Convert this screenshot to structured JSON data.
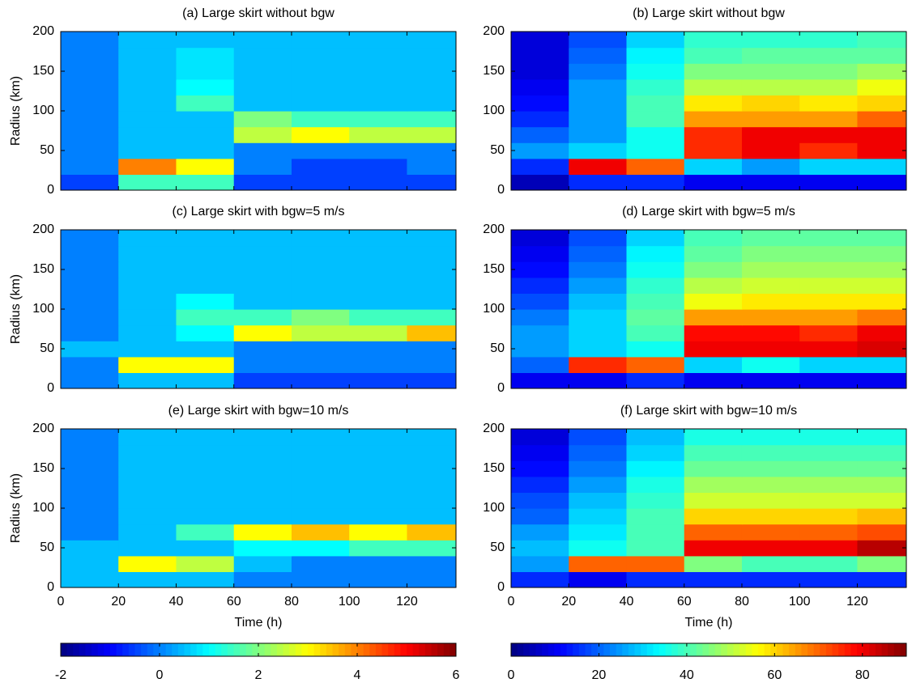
{
  "chart_data": [
    {
      "type": "heatmap",
      "title": "(a) Large skirt without bgw",
      "ylabel": "Radius (km)",
      "colormap": "jet",
      "clim": [
        -2,
        6
      ],
      "xlim": [
        0,
        137
      ],
      "ylim": [
        0,
        200
      ],
      "xticks": [
        0,
        20,
        40,
        60,
        80,
        100,
        120
      ],
      "yticks": [
        0,
        50,
        100,
        150,
        200
      ],
      "x": [
        10,
        30,
        50,
        70,
        90,
        110,
        130
      ],
      "y": [
        10,
        30,
        50,
        70,
        90,
        110,
        130,
        150,
        170,
        190
      ],
      "z": [
        [
          -0.5,
          1.5,
          1.5,
          -0.5,
          -0.5,
          -0.5,
          -0.5
        ],
        [
          0,
          4,
          3,
          0,
          -0.5,
          -0.5,
          0
        ],
        [
          0,
          0.5,
          0.5,
          0,
          0,
          0,
          0
        ],
        [
          0,
          0.5,
          0.5,
          2.5,
          3,
          2.5,
          2.5
        ],
        [
          0,
          0.5,
          0.5,
          2,
          1.5,
          1.5,
          1.5
        ],
        [
          0,
          0.5,
          1.5,
          0.5,
          0.5,
          0.5,
          0.5
        ],
        [
          0,
          0.5,
          1,
          0.5,
          0.5,
          0.5,
          0.5
        ],
        [
          0,
          0.5,
          0.8,
          0.5,
          0.5,
          0.5,
          0.5
        ],
        [
          0,
          0.5,
          0.8,
          0.5,
          0.5,
          0.5,
          0.5
        ],
        [
          0,
          0.5,
          0.5,
          0.5,
          0.5,
          0.5,
          0.5
        ]
      ]
    },
    {
      "type": "heatmap",
      "title": "(b) Large skirt without bgw",
      "colormap": "jet",
      "clim": [
        0,
        90
      ],
      "xlim": [
        0,
        137
      ],
      "ylim": [
        0,
        200
      ],
      "xticks": [
        0,
        20,
        40,
        60,
        80,
        100,
        120
      ],
      "yticks": [
        0,
        50,
        100,
        150,
        200
      ],
      "x": [
        10,
        30,
        50,
        70,
        90,
        110,
        130
      ],
      "y": [
        10,
        30,
        50,
        70,
        90,
        110,
        130,
        150,
        170,
        190
      ],
      "z": [
        [
          5,
          15,
          15,
          10,
          10,
          10,
          10
        ],
        [
          15,
          80,
          70,
          30,
          25,
          30,
          30
        ],
        [
          25,
          30,
          35,
          75,
          80,
          75,
          80
        ],
        [
          20,
          25,
          35,
          75,
          80,
          80,
          80
        ],
        [
          15,
          25,
          40,
          65,
          65,
          65,
          70
        ],
        [
          12,
          25,
          40,
          58,
          60,
          58,
          60
        ],
        [
          10,
          25,
          38,
          50,
          50,
          50,
          55
        ],
        [
          8,
          22,
          35,
          45,
          45,
          45,
          48
        ],
        [
          8,
          20,
          33,
          40,
          42,
          42,
          42
        ],
        [
          8,
          18,
          30,
          38,
          38,
          38,
          40
        ]
      ]
    },
    {
      "type": "heatmap",
      "title": "(c) Large skirt with bgw=5 m/s",
      "ylabel": "Radius (km)",
      "colormap": "jet",
      "clim": [
        -2,
        6
      ],
      "xlim": [
        0,
        137
      ],
      "ylim": [
        0,
        200
      ],
      "xticks": [
        0,
        20,
        40,
        60,
        80,
        100,
        120
      ],
      "yticks": [
        0,
        50,
        100,
        150,
        200
      ],
      "x": [
        10,
        30,
        50,
        70,
        90,
        110,
        130
      ],
      "y": [
        10,
        30,
        50,
        70,
        90,
        110,
        130,
        150,
        170,
        190
      ],
      "z": [
        [
          0,
          0.5,
          0.5,
          -0.5,
          -0.5,
          -0.5,
          -0.5
        ],
        [
          0,
          3,
          3,
          0,
          0,
          0,
          0
        ],
        [
          0.5,
          0.5,
          0.5,
          0,
          0,
          0,
          0
        ],
        [
          0,
          0.5,
          1,
          3,
          2.5,
          2.5,
          3.5
        ],
        [
          0,
          0.5,
          1.5,
          1.5,
          2,
          1.5,
          1.5
        ],
        [
          0,
          0.5,
          1,
          0.5,
          0.5,
          0.5,
          0.5
        ],
        [
          0,
          0.5,
          0.5,
          0.5,
          0.5,
          0.5,
          0.5
        ],
        [
          0,
          0.5,
          0.5,
          0.5,
          0.5,
          0.5,
          0.5
        ],
        [
          0,
          0.5,
          0.5,
          0.5,
          0.5,
          0.5,
          0.5
        ],
        [
          0,
          0.5,
          0.5,
          0.5,
          0.5,
          0.5,
          0.5
        ]
      ]
    },
    {
      "type": "heatmap",
      "title": "(d) Large skirt with bgw=5 m/s",
      "colormap": "jet",
      "clim": [
        0,
        90
      ],
      "xlim": [
        0,
        137
      ],
      "ylim": [
        0,
        200
      ],
      "xticks": [
        0,
        20,
        40,
        60,
        80,
        100,
        120
      ],
      "yticks": [
        0,
        50,
        100,
        150,
        200
      ],
      "x": [
        10,
        30,
        50,
        70,
        90,
        110,
        130
      ],
      "y": [
        10,
        30,
        50,
        70,
        90,
        110,
        130,
        150,
        170,
        190
      ],
      "z": [
        [
          10,
          10,
          15,
          10,
          10,
          10,
          10
        ],
        [
          20,
          75,
          70,
          30,
          35,
          30,
          30
        ],
        [
          25,
          30,
          35,
          80,
          80,
          80,
          82
        ],
        [
          25,
          30,
          40,
          78,
          78,
          75,
          80
        ],
        [
          22,
          30,
          42,
          65,
          65,
          65,
          68
        ],
        [
          18,
          28,
          40,
          55,
          58,
          58,
          58
        ],
        [
          15,
          25,
          38,
          50,
          52,
          52,
          52
        ],
        [
          12,
          22,
          35,
          45,
          48,
          48,
          48
        ],
        [
          10,
          20,
          33,
          42,
          45,
          45,
          45
        ],
        [
          8,
          18,
          30,
          40,
          42,
          42,
          42
        ]
      ]
    },
    {
      "type": "heatmap",
      "title": "(e) Large skirt with bgw=10 m/s",
      "ylabel": "Radius (km)",
      "xlabel": "Time (h)",
      "colormap": "jet",
      "clim": [
        -2,
        6
      ],
      "xlim": [
        0,
        137
      ],
      "ylim": [
        0,
        200
      ],
      "xticks": [
        0,
        20,
        40,
        60,
        80,
        100,
        120
      ],
      "yticks": [
        0,
        50,
        100,
        150,
        200
      ],
      "x": [
        10,
        30,
        50,
        70,
        90,
        110,
        130
      ],
      "y": [
        10,
        30,
        50,
        70,
        90,
        110,
        130,
        150,
        170,
        190
      ],
      "z": [
        [
          0.5,
          0.5,
          0.5,
          0,
          0,
          0,
          0
        ],
        [
          0.5,
          3,
          2.5,
          0.5,
          0,
          0,
          0
        ],
        [
          0.5,
          0.5,
          0.5,
          1,
          1,
          1.5,
          1.5
        ],
        [
          0,
          0.5,
          1.5,
          3,
          3.5,
          3,
          3.5
        ],
        [
          0,
          0.5,
          0.5,
          0.5,
          0.5,
          0.5,
          0.5
        ],
        [
          0,
          0.5,
          0.5,
          0.5,
          0.5,
          0.5,
          0.5
        ],
        [
          0,
          0.5,
          0.5,
          0.5,
          0.5,
          0.5,
          0.5
        ],
        [
          0,
          0.5,
          0.5,
          0.5,
          0.5,
          0.5,
          0.5
        ],
        [
          0,
          0.5,
          0.5,
          0.5,
          0.5,
          0.5,
          0.5
        ],
        [
          0,
          0.5,
          0.5,
          0.5,
          0.5,
          0.5,
          0.5
        ]
      ]
    },
    {
      "type": "heatmap",
      "title": "(f) Large skirt with bgw=10 m/s",
      "xlabel": "Time (h)",
      "colormap": "jet",
      "clim": [
        0,
        90
      ],
      "xlim": [
        0,
        137
      ],
      "ylim": [
        0,
        200
      ],
      "xticks": [
        0,
        20,
        40,
        60,
        80,
        100,
        120
      ],
      "yticks": [
        0,
        50,
        100,
        150,
        200
      ],
      "x": [
        10,
        30,
        50,
        70,
        90,
        110,
        130
      ],
      "y": [
        10,
        30,
        50,
        70,
        90,
        110,
        130,
        150,
        170,
        190
      ],
      "z": [
        [
          15,
          10,
          15,
          15,
          15,
          15,
          15
        ],
        [
          25,
          70,
          70,
          45,
          40,
          40,
          45
        ],
        [
          28,
          35,
          40,
          80,
          80,
          80,
          85
        ],
        [
          25,
          32,
          40,
          70,
          70,
          70,
          72
        ],
        [
          20,
          30,
          40,
          60,
          60,
          60,
          62
        ],
        [
          18,
          28,
          38,
          52,
          52,
          52,
          52
        ],
        [
          15,
          25,
          36,
          48,
          48,
          48,
          48
        ],
        [
          12,
          22,
          33,
          43,
          43,
          43,
          43
        ],
        [
          10,
          20,
          30,
          40,
          40,
          40,
          40
        ],
        [
          8,
          18,
          28,
          36,
          36,
          36,
          36
        ]
      ]
    },
    {
      "type": "colorbar",
      "colormap": "jet",
      "xlim": [
        -2,
        6
      ],
      "xticks": [
        -2,
        0,
        2,
        4,
        6
      ]
    },
    {
      "type": "colorbar",
      "colormap": "jet",
      "xlim": [
        0,
        90
      ],
      "xticks": [
        0,
        20,
        40,
        60,
        80
      ]
    }
  ]
}
